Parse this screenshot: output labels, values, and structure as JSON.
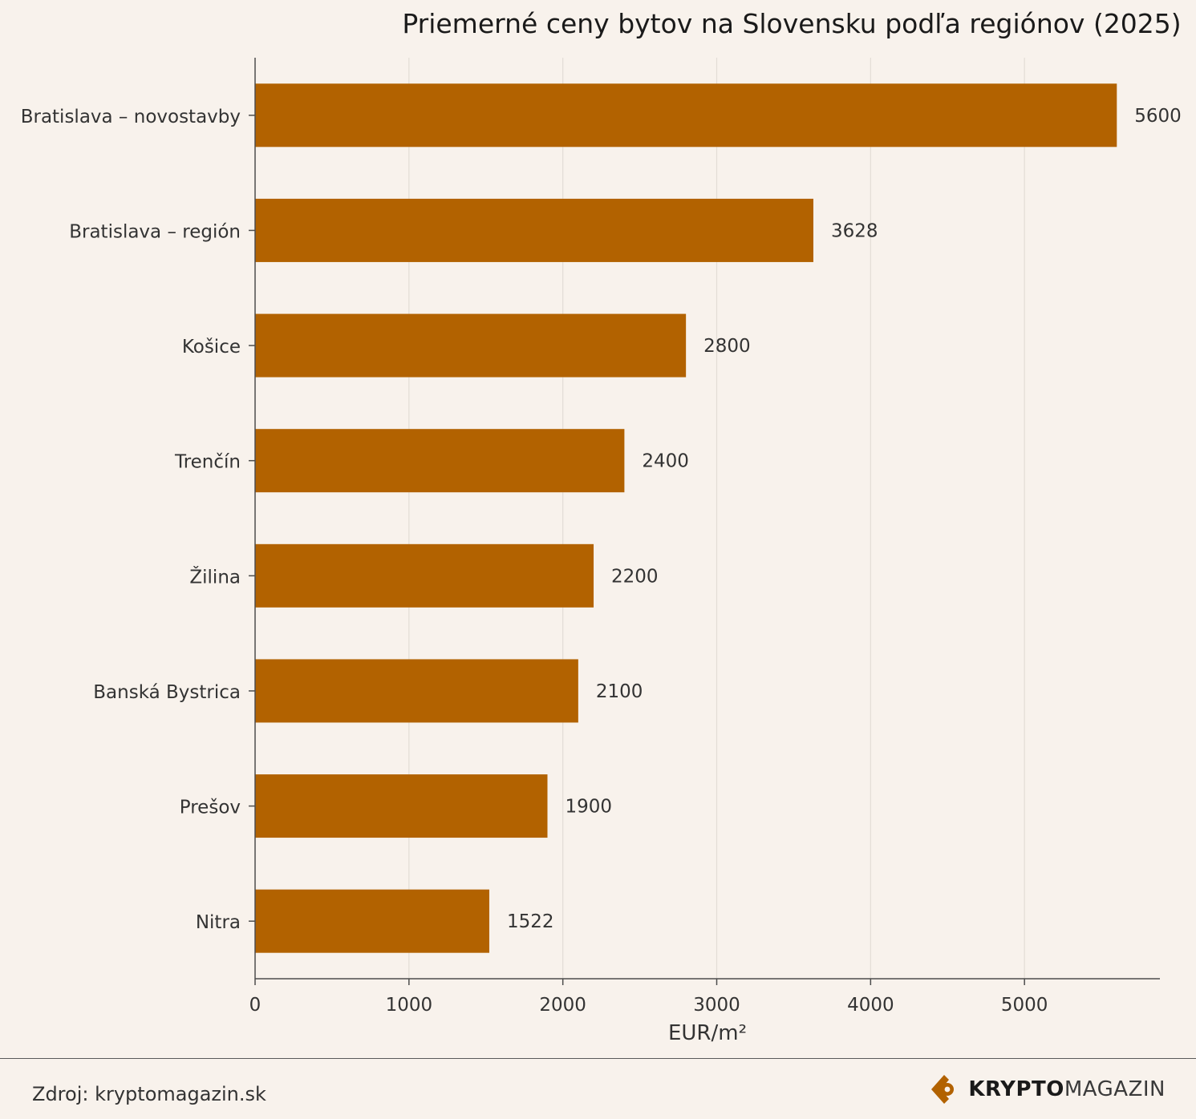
{
  "colors": {
    "background": "#f8f2ec",
    "bar": "#b26200",
    "grid": "#e3ddd6",
    "axis": "#4d4d4d",
    "text": "#333333",
    "title": "#1a1a1a"
  },
  "chart_data": {
    "type": "bar",
    "orientation": "horizontal",
    "title": "Priemerné ceny bytov na Slovensku podľa regiónov (2025)",
    "xlabel": "EUR/m²",
    "ylabel": "",
    "categories": [
      "Bratislava – novostavby",
      "Bratislava – región",
      "Košice",
      "Trenčín",
      "Žilina",
      "Banská Bystrica",
      "Prešov",
      "Nitra"
    ],
    "values": [
      5600,
      3628,
      2800,
      2400,
      2200,
      2100,
      1900,
      1522
    ],
    "value_labels": [
      "5600",
      "3628",
      "2800",
      "2400",
      "2200",
      "2100",
      "1900",
      "1522"
    ],
    "xlim": [
      0,
      5880
    ],
    "xticks": [
      0,
      1000,
      2000,
      3000,
      4000,
      5000
    ],
    "xtick_labels": [
      "0",
      "1000",
      "2000",
      "3000",
      "4000",
      "5000"
    ],
    "grid": "vertical"
  },
  "footer": {
    "source": "Zdroj: kryptomagazin.sk",
    "logo_strong": "KRYPTO",
    "logo_light": "MAGAZIN",
    "logo_icon": "kryptomagazin-logo-icon"
  }
}
